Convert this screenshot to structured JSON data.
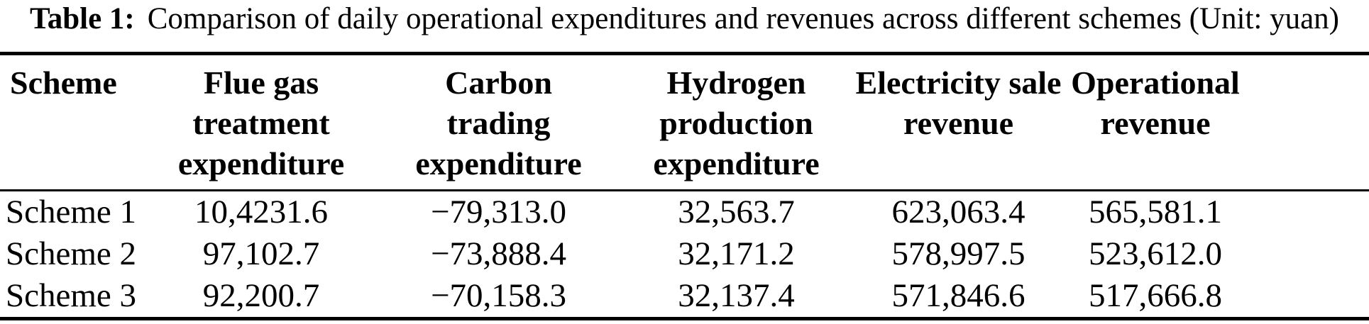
{
  "page": {
    "background_color": "#ffffff",
    "text_color": "#000000"
  },
  "caption": {
    "label": "Table 1:",
    "text": "Comparison of daily operational expenditures and revenues across different schemes (Unit: yuan)"
  },
  "table": {
    "columns": [
      {
        "label": "Scheme"
      },
      {
        "label": "Flue gas\ntreatment\nexpenditure"
      },
      {
        "label": "Carbon\ntrading\nexpenditure"
      },
      {
        "label": "Hydrogen\nproduction\nexpenditure"
      },
      {
        "label": "Electricity sale\nrevenue"
      },
      {
        "label": "Operational\nrevenue"
      }
    ],
    "rows": [
      {
        "scheme": "Scheme 1",
        "flue_gas_treatment_expenditure": "10,4231.6",
        "carbon_trading_expenditure": "−79,313.0",
        "hydrogen_production_expenditure": "32,563.7",
        "electricity_sale_revenue": "623,063.4",
        "operational_revenue": "565,581.1"
      },
      {
        "scheme": "Scheme 2",
        "flue_gas_treatment_expenditure": "97,102.7",
        "carbon_trading_expenditure": "−73,888.4",
        "hydrogen_production_expenditure": "32,171.2",
        "electricity_sale_revenue": "578,997.5",
        "operational_revenue": "523,612.0"
      },
      {
        "scheme": "Scheme 3",
        "flue_gas_treatment_expenditure": "92,200.7",
        "carbon_trading_expenditure": "−70,158.3",
        "hydrogen_production_expenditure": "32,137.4",
        "electricity_sale_revenue": "571,846.6",
        "operational_revenue": "517,666.8"
      }
    ]
  }
}
